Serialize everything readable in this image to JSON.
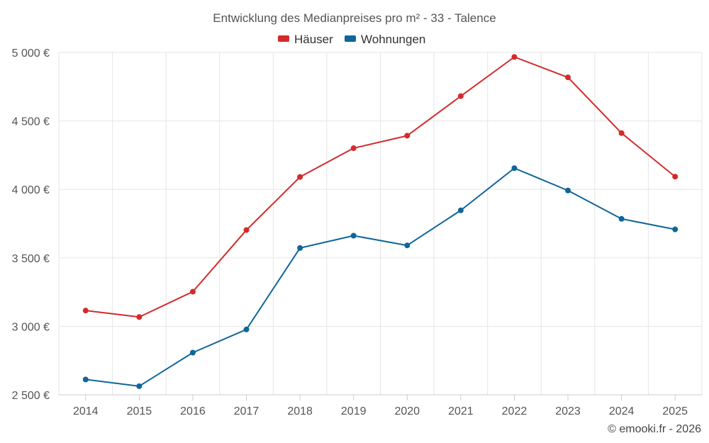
{
  "chart_data": {
    "type": "line",
    "title": "Entwicklung des Medianpreises pro m² - 33 - Talence",
    "categories": [
      "2014",
      "2015",
      "2016",
      "2017",
      "2018",
      "2019",
      "2020",
      "2021",
      "2022",
      "2023",
      "2024",
      "2025"
    ],
    "series": [
      {
        "name": "Häuser",
        "color": "#d42a2a",
        "values": [
          3115,
          3068,
          3253,
          3703,
          4091,
          4301,
          4392,
          4681,
          4967,
          4818,
          4411,
          4093
        ]
      },
      {
        "name": "Wohnungen",
        "color": "#0f6699",
        "values": [
          2612,
          2563,
          2808,
          2977,
          3572,
          3662,
          3591,
          3847,
          4155,
          3992,
          3785,
          3708
        ]
      }
    ],
    "ylim": [
      2500,
      5000
    ],
    "yticks": [
      2500,
      3000,
      3500,
      4000,
      4500,
      5000
    ],
    "ytick_labels": [
      "2 500 €",
      "3 000 €",
      "3 500 €",
      "4 000 €",
      "4 500 €",
      "5 000 €"
    ],
    "xlabel": "",
    "ylabel": "",
    "legend_position": "top-center",
    "grid": true
  },
  "credit": "© emooki.fr - 2026"
}
